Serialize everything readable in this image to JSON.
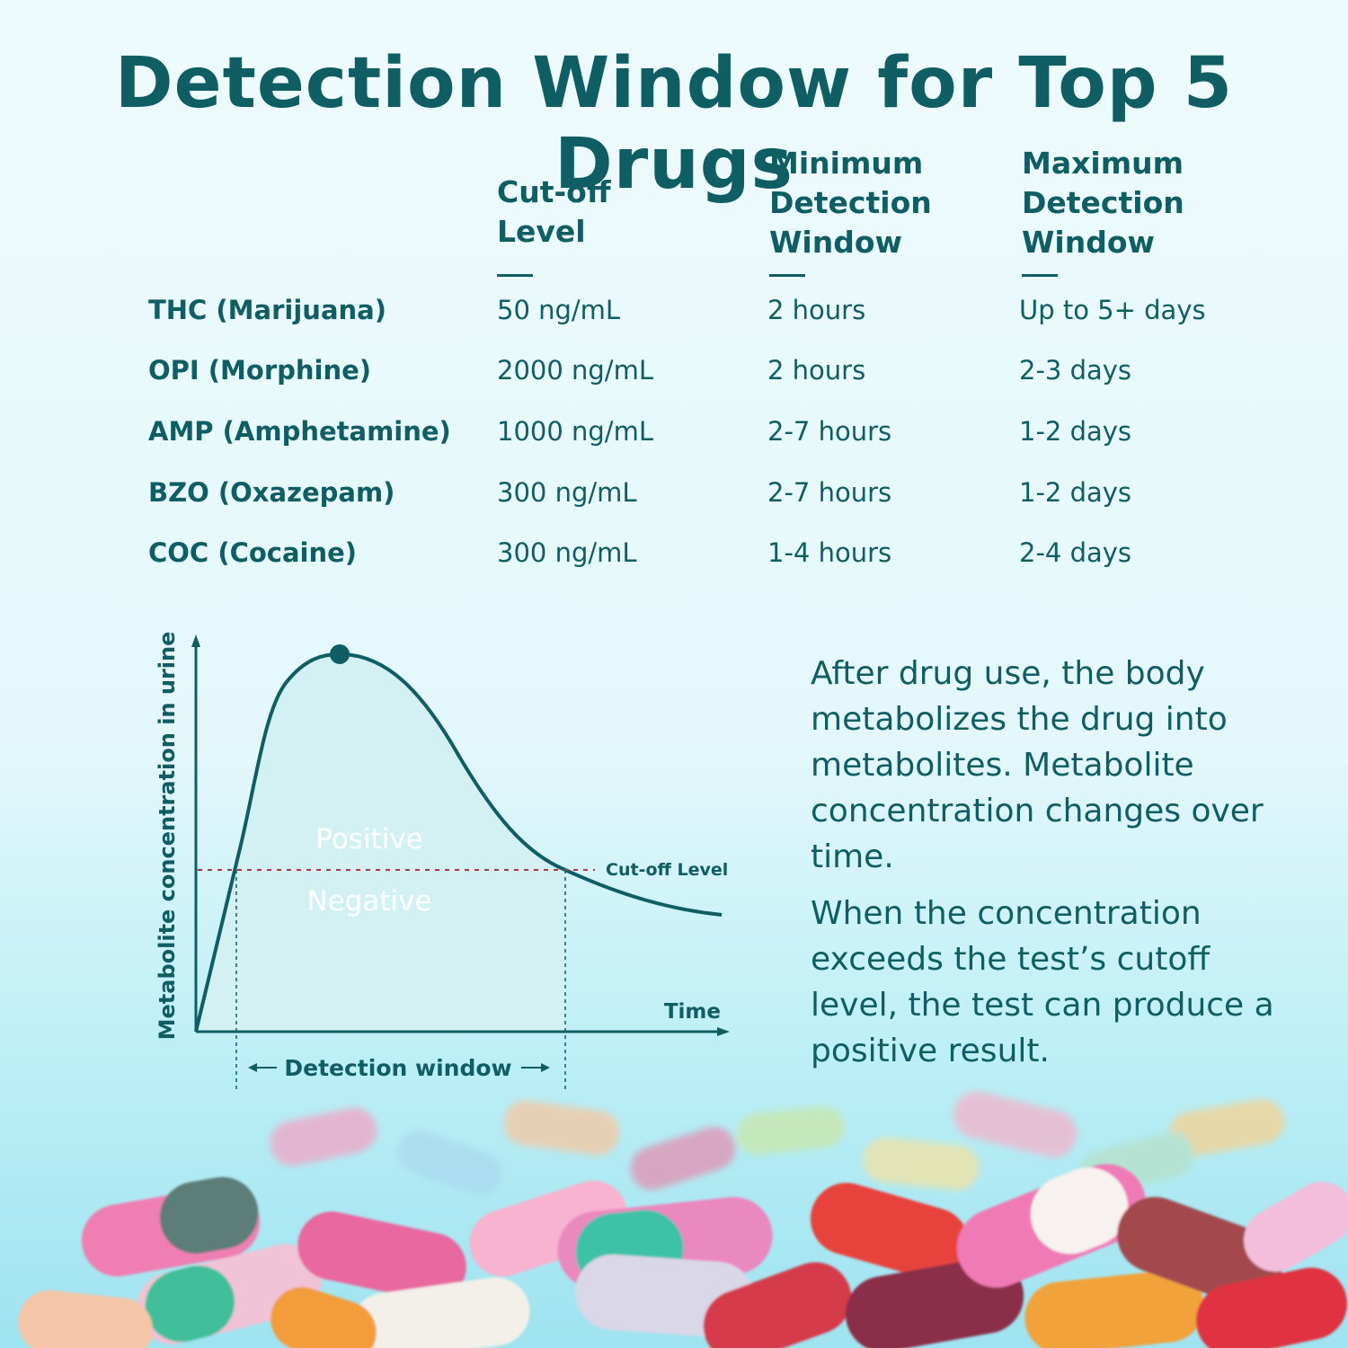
{
  "title": "Detection Window for Top 5 Drugs",
  "table": {
    "headers": {
      "cutoff": [
        "Cut-off",
        "Level"
      ],
      "min": [
        "Minimum",
        "Detection",
        "Window"
      ],
      "max": [
        "Maximum",
        "Detection",
        "Window"
      ]
    },
    "rows": [
      {
        "drug": "THC (Marijuana)",
        "cutoff": "50 ng/mL",
        "min": "2 hours",
        "max": "Up to 5+ days"
      },
      {
        "drug": "OPI (Morphine)",
        "cutoff": "2000 ng/mL",
        "min": "2 hours",
        "max": "2-3 days"
      },
      {
        "drug": "AMP (Amphetamine)",
        "cutoff": "1000 ng/mL",
        "min": "2-7 hours",
        "max": "1-2 days"
      },
      {
        "drug": "BZO (Oxazepam)",
        "cutoff": "300 ng/mL",
        "min": "2-7 hours",
        "max": "1-2 days"
      },
      {
        "drug": "COC (Cocaine)",
        "cutoff": "300 ng/mL",
        "min": "1-4 hours",
        "max": "2-4 days"
      }
    ]
  },
  "diagram": {
    "ylabel": "Metabolite concentration in urine",
    "xlabel": "Time",
    "positive_label": "Positive",
    "negative_label": "Negative",
    "cutoff_label": "Cut-off Level",
    "window_label": "Detection window"
  },
  "description": {
    "p1": "After drug use, the body metabolizes the drug into metabolites. Metabolite concentration changes over time.",
    "p2": "When the concentration exceeds the test’s cutoff level, the test can produce a positive result."
  },
  "colors": {
    "primary": "#0f5e63",
    "fill": "#78c2c6",
    "cutoff_line": "#b2363f"
  }
}
